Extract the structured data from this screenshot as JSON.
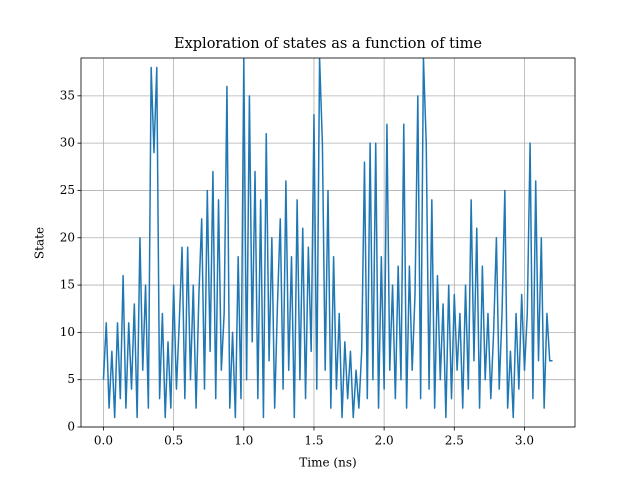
{
  "chart_data": {
    "type": "line",
    "title": "Exploration of states as a function of time",
    "xlabel": "Time (ns)",
    "ylabel": "State",
    "grid": true,
    "xlim": [
      -0.16,
      3.36
    ],
    "ylim": [
      0,
      39
    ],
    "xticks": [
      {
        "value": 0,
        "label": "0.0"
      },
      {
        "value": 0.5,
        "label": "0.5"
      },
      {
        "value": 1,
        "label": "1.0"
      },
      {
        "value": 1.5,
        "label": "1.5"
      },
      {
        "value": 2,
        "label": "2.0"
      },
      {
        "value": 2.5,
        "label": "2.5"
      },
      {
        "value": 3,
        "label": "3.0"
      }
    ],
    "yticks": [
      0,
      5,
      10,
      15,
      20,
      25,
      30,
      35
    ],
    "x": [
      0.0,
      0.02,
      0.04,
      0.06,
      0.08,
      0.1,
      0.12,
      0.14,
      0.16,
      0.18,
      0.2,
      0.22,
      0.24,
      0.26,
      0.28,
      0.3,
      0.32,
      0.34,
      0.36,
      0.38,
      0.4,
      0.42,
      0.44,
      0.46,
      0.48,
      0.5,
      0.52,
      0.54,
      0.56,
      0.58,
      0.6,
      0.62,
      0.64,
      0.66,
      0.68,
      0.7,
      0.72,
      0.74,
      0.76,
      0.78,
      0.8,
      0.82,
      0.84,
      0.86,
      0.88,
      0.9,
      0.92,
      0.94,
      0.96,
      0.98,
      1.0,
      1.02,
      1.04,
      1.06,
      1.08,
      1.1,
      1.12,
      1.14,
      1.16,
      1.18,
      1.2,
      1.22,
      1.24,
      1.26,
      1.28,
      1.3,
      1.32,
      1.34,
      1.36,
      1.38,
      1.4,
      1.42,
      1.44,
      1.46,
      1.48,
      1.5,
      1.52,
      1.54,
      1.56,
      1.58,
      1.6,
      1.62,
      1.64,
      1.66,
      1.68,
      1.7,
      1.72,
      1.74,
      1.76,
      1.78,
      1.8,
      1.82,
      1.84,
      1.86,
      1.88,
      1.9,
      1.92,
      1.94,
      1.96,
      1.98,
      2.0,
      2.02,
      2.04,
      2.06,
      2.08,
      2.1,
      2.12,
      2.14,
      2.16,
      2.18,
      2.2,
      2.22,
      2.24,
      2.26,
      2.28,
      2.3,
      2.32,
      2.34,
      2.36,
      2.38,
      2.4,
      2.42,
      2.44,
      2.46,
      2.48,
      2.5,
      2.52,
      2.54,
      2.56,
      2.58,
      2.6,
      2.62,
      2.64,
      2.66,
      2.68,
      2.7,
      2.72,
      2.74,
      2.76,
      2.78,
      2.8,
      2.82,
      2.84,
      2.86,
      2.88,
      2.9,
      2.92,
      2.94,
      2.96,
      2.98,
      3.0,
      3.02,
      3.04,
      3.06,
      3.08,
      3.1,
      3.12,
      3.14,
      3.16,
      3.18,
      3.2
    ],
    "series": [
      {
        "color": "#1f77b4",
        "values": [
          5,
          11,
          2,
          8,
          1,
          11,
          3,
          16,
          2,
          11,
          4,
          13,
          1,
          20,
          6,
          15,
          2,
          38,
          29,
          38,
          3,
          12,
          1,
          9,
          2,
          15,
          4,
          11,
          19,
          3,
          19,
          5,
          15,
          2,
          14,
          22,
          4,
          25,
          8,
          27,
          3,
          24,
          6,
          12,
          36,
          2,
          10,
          1,
          18,
          3,
          39,
          5,
          35,
          9,
          27,
          3,
          24,
          1,
          31,
          7,
          20,
          2,
          13,
          22,
          4,
          26,
          6,
          18,
          1,
          24,
          5,
          21,
          3,
          19,
          8,
          33,
          4,
          39,
          30,
          6,
          25,
          2,
          18,
          4,
          12,
          1,
          9,
          3,
          8,
          1,
          6,
          2,
          8,
          28,
          3,
          30,
          5,
          30,
          2,
          18,
          4,
          32,
          6,
          15,
          3,
          17,
          5,
          32,
          2,
          17,
          6,
          14,
          35,
          3,
          39,
          30,
          4,
          24,
          2,
          16,
          5,
          13,
          1,
          15,
          3,
          14,
          6,
          12,
          2,
          15,
          4,
          24,
          7,
          21,
          2,
          17,
          5,
          12,
          3,
          10,
          20,
          4,
          12,
          25,
          2,
          8,
          1,
          12,
          4,
          14,
          6,
          12,
          30,
          3,
          26,
          7,
          20,
          2,
          12,
          7,
          7
        ]
      }
    ]
  }
}
